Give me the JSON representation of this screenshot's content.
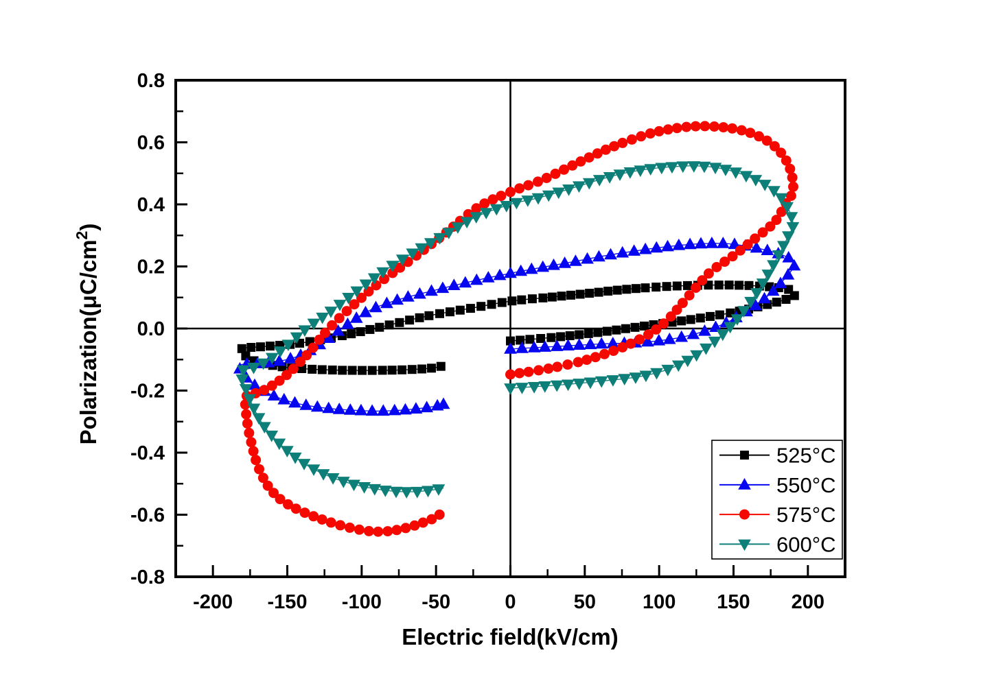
{
  "figure": {
    "background": "#ffffff",
    "border_color": "#000000"
  },
  "chart_data": {
    "type": "line",
    "title": "",
    "xlabel": "Electric field(kV/cm)",
    "ylabel": "Polarization(μC/cm²)",
    "xlim": [
      -225,
      225
    ],
    "ylim": [
      -0.8,
      0.8
    ],
    "xticks": [
      -200,
      -150,
      -100,
      -50,
      0,
      50,
      100,
      150,
      200
    ],
    "yticks": [
      -0.8,
      -0.6,
      -0.4,
      -0.2,
      0,
      0.2,
      0.4,
      0.6,
      0.8
    ],
    "x_minor_step": 25,
    "y_minor_step": 0.1,
    "grid": false,
    "zero_lines": true,
    "legend_position": "lower-right",
    "series": [
      {
        "name": "525°C",
        "color": "#000000",
        "marker": "square",
        "marker_size": 13,
        "marker_step": 13.5,
        "points": [
          [
            0,
            -0.04
          ],
          [
            30,
            -0.028
          ],
          [
            60,
            -0.012
          ],
          [
            90,
            0.008
          ],
          [
            120,
            0.028
          ],
          [
            150,
            0.052
          ],
          [
            170,
            0.074
          ],
          [
            184,
            0.092
          ],
          [
            191,
            0.106
          ],
          [
            187,
            0.126
          ],
          [
            170,
            0.136
          ],
          [
            148,
            0.14
          ],
          [
            124,
            0.139
          ],
          [
            100,
            0.134
          ],
          [
            75,
            0.125
          ],
          [
            50,
            0.112
          ],
          [
            25,
            0.1
          ],
          [
            0,
            0.088
          ],
          [
            -28,
            0.064
          ],
          [
            -56,
            0.04
          ],
          [
            -88,
            0.004
          ],
          [
            -118,
            -0.028
          ],
          [
            -146,
            -0.05
          ],
          [
            -168,
            -0.059
          ],
          [
            -181,
            -0.066
          ],
          [
            -176,
            -0.095
          ],
          [
            -167,
            -0.112
          ],
          [
            -154,
            -0.123
          ],
          [
            -138,
            -0.13
          ],
          [
            -118,
            -0.134
          ],
          [
            -98,
            -0.135
          ],
          [
            -78,
            -0.134
          ],
          [
            -62,
            -0.131
          ],
          [
            -52,
            -0.127
          ],
          [
            -45,
            -0.12
          ]
        ]
      },
      {
        "name": "550°C",
        "color": "#0606f0",
        "marker": "triangle-up",
        "marker_size": 17,
        "marker_step": 15.5,
        "points": [
          [
            0,
            -0.066
          ],
          [
            30,
            -0.058
          ],
          [
            60,
            -0.05
          ],
          [
            90,
            -0.044
          ],
          [
            115,
            -0.028
          ],
          [
            138,
            0.004
          ],
          [
            158,
            0.052
          ],
          [
            173,
            0.105
          ],
          [
            184,
            0.158
          ],
          [
            191,
            0.205
          ],
          [
            187,
            0.228
          ],
          [
            174,
            0.25
          ],
          [
            158,
            0.266
          ],
          [
            143,
            0.274
          ],
          [
            124,
            0.272
          ],
          [
            104,
            0.263
          ],
          [
            84,
            0.25
          ],
          [
            63,
            0.234
          ],
          [
            42,
            0.215
          ],
          [
            20,
            0.196
          ],
          [
            0,
            0.178
          ],
          [
            -26,
            0.152
          ],
          [
            -52,
            0.122
          ],
          [
            -78,
            0.089
          ],
          [
            -96,
            0.055
          ],
          [
            -112,
            0.005
          ],
          [
            -127,
            -0.048
          ],
          [
            -141,
            -0.086
          ],
          [
            -156,
            -0.106
          ],
          [
            -170,
            -0.113
          ],
          [
            -182,
            -0.12
          ],
          [
            -177,
            -0.162
          ],
          [
            -169,
            -0.192
          ],
          [
            -159,
            -0.217
          ],
          [
            -147,
            -0.237
          ],
          [
            -134,
            -0.25
          ],
          [
            -119,
            -0.259
          ],
          [
            -103,
            -0.264
          ],
          [
            -88,
            -0.266
          ],
          [
            -73,
            -0.263
          ],
          [
            -60,
            -0.257
          ],
          [
            -50,
            -0.25
          ],
          [
            -45,
            -0.244
          ]
        ]
      },
      {
        "name": "575°C",
        "color": "#f50800",
        "marker": "circle",
        "marker_size": 15,
        "marker_step": 13,
        "points": [
          [
            0,
            -0.148
          ],
          [
            28,
            -0.127
          ],
          [
            56,
            -0.094
          ],
          [
            84,
            -0.042
          ],
          [
            103,
            0.016
          ],
          [
            119,
            0.1
          ],
          [
            134,
            0.18
          ],
          [
            150,
            0.235
          ],
          [
            165,
            0.292
          ],
          [
            178,
            0.345
          ],
          [
            186,
            0.41
          ],
          [
            190,
            0.442
          ],
          [
            189,
            0.498
          ],
          [
            185,
            0.545
          ],
          [
            178,
            0.586
          ],
          [
            168,
            0.617
          ],
          [
            156,
            0.638
          ],
          [
            142,
            0.649
          ],
          [
            127,
            0.652
          ],
          [
            112,
            0.646
          ],
          [
            96,
            0.631
          ],
          [
            81,
            0.608
          ],
          [
            66,
            0.58
          ],
          [
            51,
            0.547
          ],
          [
            36,
            0.512
          ],
          [
            20,
            0.476
          ],
          [
            0,
            0.44
          ],
          [
            -22,
            0.39
          ],
          [
            -44,
            0.306
          ],
          [
            -68,
            0.218
          ],
          [
            -88,
            0.148
          ],
          [
            -105,
            0.078
          ],
          [
            -122,
            0.0
          ],
          [
            -137,
            -0.086
          ],
          [
            -151,
            -0.152
          ],
          [
            -163,
            -0.192
          ],
          [
            -172,
            -0.21
          ],
          [
            -178,
            -0.224
          ],
          [
            -177,
            -0.3
          ],
          [
            -174,
            -0.372
          ],
          [
            -170,
            -0.44
          ],
          [
            -164,
            -0.5
          ],
          [
            -156,
            -0.545
          ],
          [
            -146,
            -0.576
          ],
          [
            -134,
            -0.602
          ],
          [
            -120,
            -0.626
          ],
          [
            -105,
            -0.645
          ],
          [
            -92,
            -0.654
          ],
          [
            -80,
            -0.652
          ],
          [
            -68,
            -0.64
          ],
          [
            -58,
            -0.624
          ],
          [
            -50,
            -0.608
          ],
          [
            -46,
            -0.592
          ]
        ]
      },
      {
        "name": "600°C",
        "color": "#0e7f78",
        "marker": "triangle-down",
        "marker_size": 17,
        "marker_step": 15,
        "points": [
          [
            0,
            -0.192
          ],
          [
            30,
            -0.183
          ],
          [
            60,
            -0.17
          ],
          [
            90,
            -0.152
          ],
          [
            113,
            -0.118
          ],
          [
            133,
            -0.058
          ],
          [
            149,
            0.012
          ],
          [
            162,
            0.09
          ],
          [
            172,
            0.165
          ],
          [
            181,
            0.243
          ],
          [
            187,
            0.3
          ],
          [
            190,
            0.334
          ],
          [
            187,
            0.384
          ],
          [
            180,
            0.432
          ],
          [
            169,
            0.47
          ],
          [
            154,
            0.5
          ],
          [
            139,
            0.518
          ],
          [
            124,
            0.524
          ],
          [
            108,
            0.521
          ],
          [
            93,
            0.514
          ],
          [
            78,
            0.502
          ],
          [
            63,
            0.484
          ],
          [
            48,
            0.462
          ],
          [
            33,
            0.44
          ],
          [
            18,
            0.42
          ],
          [
            0,
            0.4
          ],
          [
            -23,
            0.36
          ],
          [
            -44,
            0.302
          ],
          [
            -65,
            0.245
          ],
          [
            -85,
            0.185
          ],
          [
            -104,
            0.118
          ],
          [
            -120,
            0.058
          ],
          [
            -137,
            0.0
          ],
          [
            -151,
            -0.058
          ],
          [
            -163,
            -0.103
          ],
          [
            -173,
            -0.126
          ],
          [
            -181,
            -0.14
          ],
          [
            -178,
            -0.192
          ],
          [
            -173,
            -0.252
          ],
          [
            -166,
            -0.312
          ],
          [
            -157,
            -0.362
          ],
          [
            -147,
            -0.406
          ],
          [
            -135,
            -0.446
          ],
          [
            -121,
            -0.478
          ],
          [
            -107,
            -0.5
          ],
          [
            -93,
            -0.515
          ],
          [
            -79,
            -0.524
          ],
          [
            -67,
            -0.526
          ],
          [
            -57,
            -0.523
          ],
          [
            -48,
            -0.517
          ],
          [
            -45,
            -0.514
          ]
        ]
      }
    ]
  }
}
